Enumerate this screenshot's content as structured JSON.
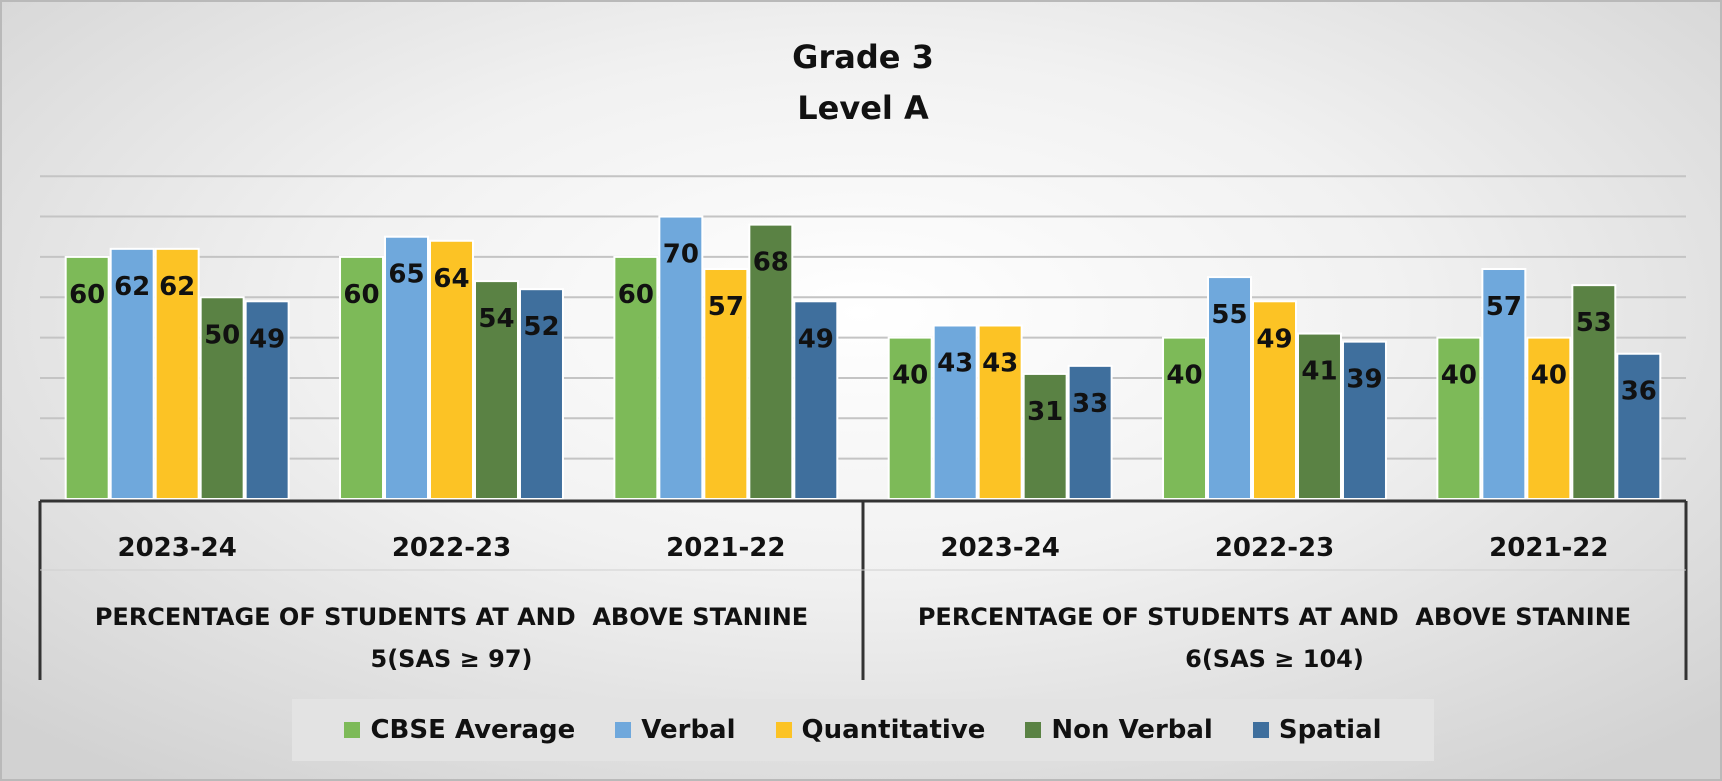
{
  "chart_data": {
    "type": "bar",
    "title": "Grade 3",
    "subtitle": "Level A",
    "ylim": [
      0,
      80
    ],
    "grid": true,
    "legend_position": "bottom",
    "groups": [
      {
        "label": "PERCENTAGE OF STUDENTS AT AND  ABOVE STANINE",
        "label_line2": "5(SAS ≥ 97)",
        "categories": [
          "2023-24",
          "2022-23",
          "2021-22"
        ]
      },
      {
        "label": "PERCENTAGE OF STUDENTS AT AND  ABOVE STANINE",
        "label_line2": "6(SAS ≥ 104)",
        "categories": [
          "2023-24",
          "2022-23",
          "2021-22"
        ]
      }
    ],
    "series": [
      {
        "name": "CBSE Average",
        "color": "#7dba58",
        "values": [
          60,
          60,
          60,
          40,
          40,
          40
        ]
      },
      {
        "name": "Verbal",
        "color": "#6fa8dc",
        "values": [
          62,
          65,
          70,
          43,
          55,
          57
        ]
      },
      {
        "name": "Quantitative",
        "color": "#fcc325",
        "values": [
          62,
          64,
          57,
          43,
          49,
          40
        ]
      },
      {
        "name": "Non Verbal",
        "color": "#5a8244",
        "values": [
          50,
          54,
          68,
          31,
          41,
          53
        ]
      },
      {
        "name": "Spatial",
        "color": "#3f6f9d",
        "values": [
          49,
          52,
          49,
          33,
          39,
          36
        ]
      }
    ]
  }
}
